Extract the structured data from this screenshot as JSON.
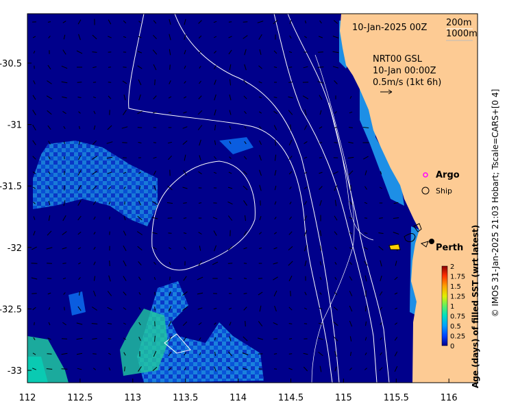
{
  "map": {
    "date_label": "10-Jan-2025 00Z",
    "legend_top": [
      "200m",
      "1000m"
    ],
    "current_info": [
      "NRT00 GSL",
      "10-Jan 00:00Z",
      "0.5m/s (1kt 6h)"
    ],
    "markers": {
      "argo": "Argo",
      "ship": "Ship",
      "city": "Perth"
    },
    "colors": {
      "ocean": "#00008b",
      "land": "#fdcb94",
      "contour": "#ffffff",
      "argo": "#ff00ff"
    },
    "x_ticks": [
      "112",
      "112.5",
      "113",
      "113.5",
      "114",
      "114.5",
      "115",
      "115.5",
      "116"
    ],
    "y_ticks": [
      "-30.5",
      "-31",
      "-31.5",
      "-32",
      "-32.5",
      "-33"
    ],
    "colorbar": {
      "title": "Age (days) of filled SST (wrt latest)",
      "ticks": [
        "2",
        "1.75",
        "1.5",
        "1.25",
        "1",
        "0.75",
        "0.5",
        "0.25",
        "0"
      ],
      "range": [
        0,
        2
      ]
    },
    "credit": "© IMOS 31-Jan-2025 21:03 Hobart; Tscale=CARS+[0 4]"
  }
}
